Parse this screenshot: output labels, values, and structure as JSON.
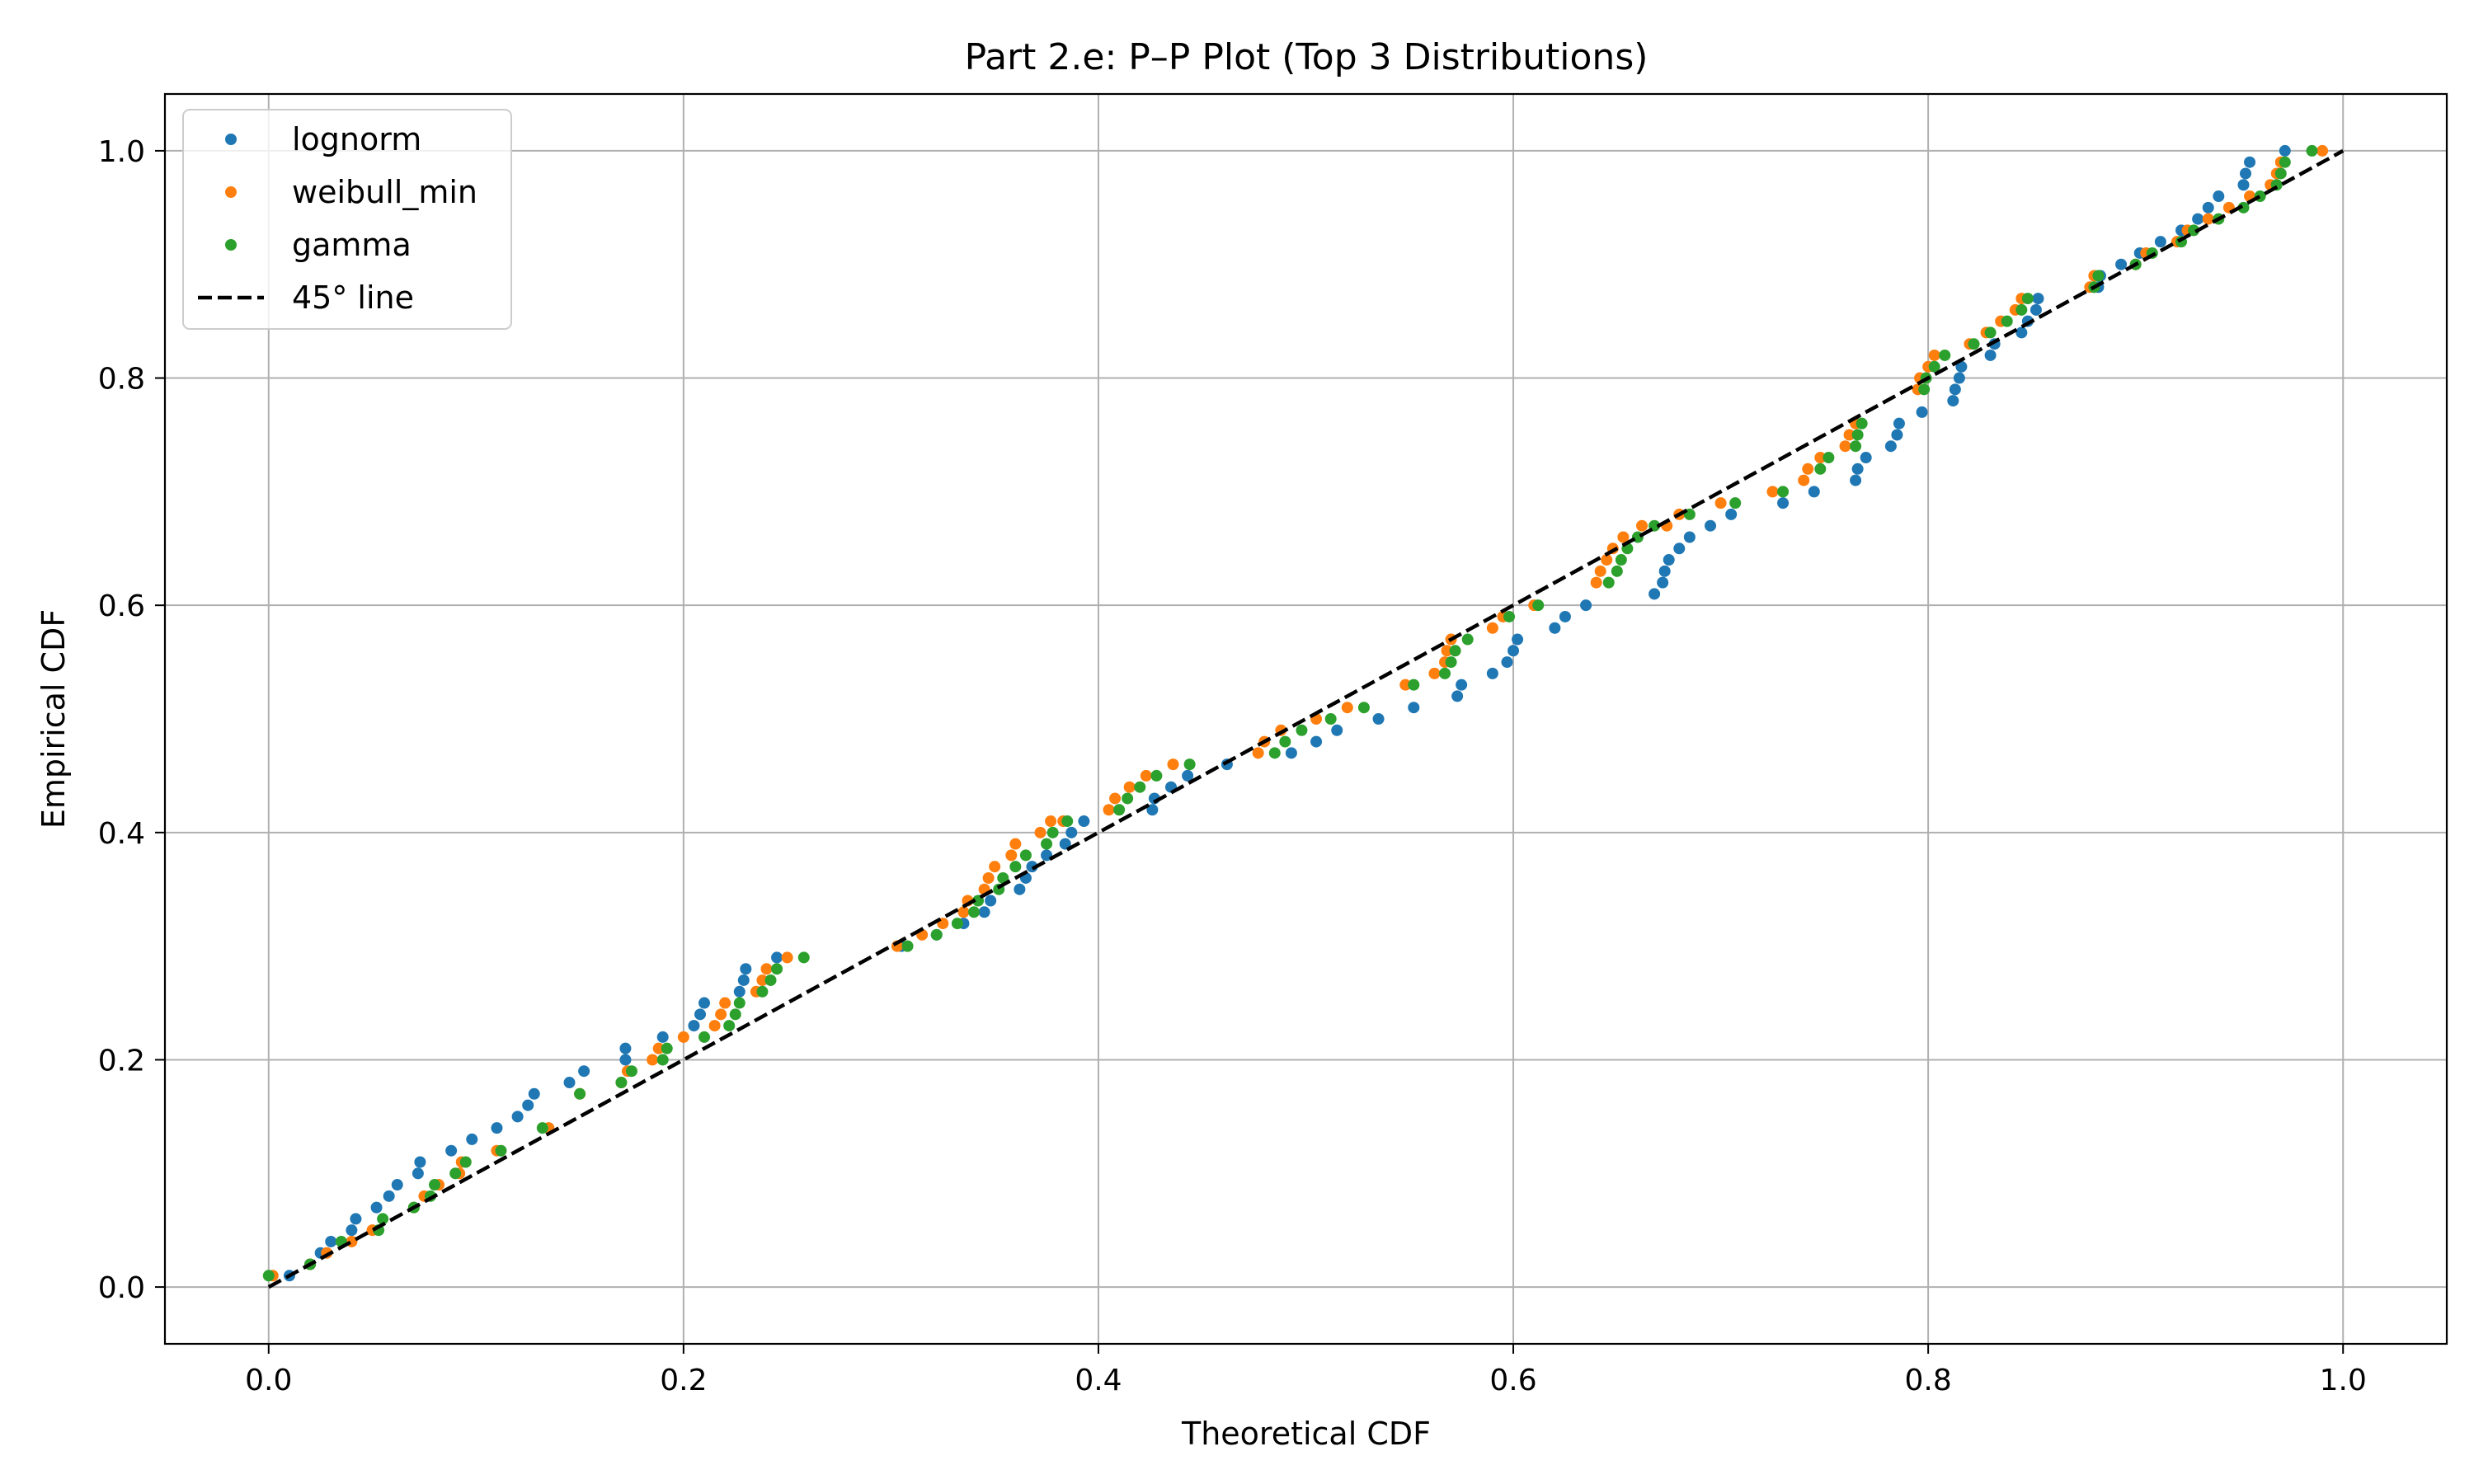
{
  "chart_data": {
    "type": "scatter",
    "title": "Part 2.e: P–P Plot (Top 3 Distributions)",
    "xlabel": "Theoretical CDF",
    "ylabel": "Empirical CDF",
    "xlim": [
      -0.05,
      1.05
    ],
    "ylim": [
      -0.05,
      1.05
    ],
    "x_ticks": [
      0.0,
      0.2,
      0.4,
      0.6,
      0.8,
      1.0
    ],
    "x_tick_labels": [
      "0.0",
      "0.2",
      "0.4",
      "0.6",
      "0.8",
      "1.0"
    ],
    "y_ticks": [
      0.0,
      0.2,
      0.4,
      0.6,
      0.8,
      1.0
    ],
    "y_tick_labels": [
      "0.0",
      "0.2",
      "0.4",
      "0.6",
      "0.8",
      "1.0"
    ],
    "grid": true,
    "legend_position": "top-left",
    "series": [
      {
        "name": "lognorm",
        "marker": "dot",
        "color": "#1f77b4",
        "points": [
          [
            0.01,
            0.01
          ],
          [
            0.02,
            0.02
          ],
          [
            0.025,
            0.03
          ],
          [
            0.03,
            0.04
          ],
          [
            0.04,
            0.05
          ],
          [
            0.042,
            0.06
          ],
          [
            0.052,
            0.07
          ],
          [
            0.058,
            0.08
          ],
          [
            0.062,
            0.09
          ],
          [
            0.072,
            0.1
          ],
          [
            0.073,
            0.11
          ],
          [
            0.088,
            0.12
          ],
          [
            0.098,
            0.13
          ],
          [
            0.11,
            0.14
          ],
          [
            0.12,
            0.15
          ],
          [
            0.125,
            0.16
          ],
          [
            0.128,
            0.17
          ],
          [
            0.145,
            0.18
          ],
          [
            0.152,
            0.19
          ],
          [
            0.172,
            0.2
          ],
          [
            0.172,
            0.21
          ],
          [
            0.19,
            0.22
          ],
          [
            0.205,
            0.23
          ],
          [
            0.208,
            0.24
          ],
          [
            0.21,
            0.25
          ],
          [
            0.227,
            0.26
          ],
          [
            0.229,
            0.27
          ],
          [
            0.23,
            0.28
          ],
          [
            0.245,
            0.29
          ],
          [
            0.305,
            0.3
          ],
          [
            0.322,
            0.31
          ],
          [
            0.335,
            0.32
          ],
          [
            0.345,
            0.33
          ],
          [
            0.348,
            0.34
          ],
          [
            0.362,
            0.35
          ],
          [
            0.365,
            0.36
          ],
          [
            0.368,
            0.37
          ],
          [
            0.375,
            0.38
          ],
          [
            0.384,
            0.39
          ],
          [
            0.387,
            0.4
          ],
          [
            0.393,
            0.41
          ],
          [
            0.426,
            0.42
          ],
          [
            0.427,
            0.43
          ],
          [
            0.435,
            0.44
          ],
          [
            0.443,
            0.45
          ],
          [
            0.462,
            0.46
          ],
          [
            0.493,
            0.47
          ],
          [
            0.505,
            0.48
          ],
          [
            0.515,
            0.49
          ],
          [
            0.535,
            0.5
          ],
          [
            0.552,
            0.51
          ],
          [
            0.573,
            0.52
          ],
          [
            0.575,
            0.53
          ],
          [
            0.59,
            0.54
          ],
          [
            0.597,
            0.55
          ],
          [
            0.6,
            0.56
          ],
          [
            0.602,
            0.57
          ],
          [
            0.62,
            0.58
          ],
          [
            0.625,
            0.59
          ],
          [
            0.635,
            0.6
          ],
          [
            0.668,
            0.61
          ],
          [
            0.672,
            0.62
          ],
          [
            0.673,
            0.63
          ],
          [
            0.675,
            0.64
          ],
          [
            0.68,
            0.65
          ],
          [
            0.685,
            0.66
          ],
          [
            0.695,
            0.67
          ],
          [
            0.705,
            0.68
          ],
          [
            0.73,
            0.69
          ],
          [
            0.745,
            0.7
          ],
          [
            0.765,
            0.71
          ],
          [
            0.766,
            0.72
          ],
          [
            0.77,
            0.73
          ],
          [
            0.782,
            0.74
          ],
          [
            0.785,
            0.75
          ],
          [
            0.786,
            0.76
          ],
          [
            0.797,
            0.77
          ],
          [
            0.812,
            0.78
          ],
          [
            0.813,
            0.79
          ],
          [
            0.815,
            0.8
          ],
          [
            0.816,
            0.81
          ],
          [
            0.83,
            0.82
          ],
          [
            0.832,
            0.83
          ],
          [
            0.845,
            0.84
          ],
          [
            0.848,
            0.85
          ],
          [
            0.852,
            0.86
          ],
          [
            0.853,
            0.87
          ],
          [
            0.882,
            0.88
          ],
          [
            0.883,
            0.89
          ],
          [
            0.893,
            0.9
          ],
          [
            0.902,
            0.91
          ],
          [
            0.912,
            0.92
          ],
          [
            0.922,
            0.93
          ],
          [
            0.93,
            0.94
          ],
          [
            0.935,
            0.95
          ],
          [
            0.94,
            0.96
          ],
          [
            0.952,
            0.97
          ],
          [
            0.953,
            0.98
          ],
          [
            0.955,
            0.99
          ],
          [
            0.972,
            1.0
          ]
        ]
      },
      {
        "name": "weibull_min",
        "marker": "dot",
        "color": "#ff7f0e",
        "points": [
          [
            0.002,
            0.01
          ],
          [
            0.02,
            0.02
          ],
          [
            0.028,
            0.03
          ],
          [
            0.04,
            0.04
          ],
          [
            0.05,
            0.05
          ],
          [
            0.07,
            0.07
          ],
          [
            0.075,
            0.08
          ],
          [
            0.082,
            0.09
          ],
          [
            0.092,
            0.1
          ],
          [
            0.093,
            0.11
          ],
          [
            0.11,
            0.12
          ],
          [
            0.135,
            0.14
          ],
          [
            0.15,
            0.17
          ],
          [
            0.17,
            0.18
          ],
          [
            0.173,
            0.19
          ],
          [
            0.185,
            0.2
          ],
          [
            0.188,
            0.21
          ],
          [
            0.2,
            0.22
          ],
          [
            0.215,
            0.23
          ],
          [
            0.218,
            0.24
          ],
          [
            0.22,
            0.25
          ],
          [
            0.235,
            0.26
          ],
          [
            0.238,
            0.27
          ],
          [
            0.24,
            0.28
          ],
          [
            0.25,
            0.29
          ],
          [
            0.303,
            0.3
          ],
          [
            0.315,
            0.31
          ],
          [
            0.325,
            0.32
          ],
          [
            0.335,
            0.33
          ],
          [
            0.337,
            0.34
          ],
          [
            0.345,
            0.35
          ],
          [
            0.347,
            0.36
          ],
          [
            0.35,
            0.37
          ],
          [
            0.358,
            0.38
          ],
          [
            0.36,
            0.39
          ],
          [
            0.372,
            0.4
          ],
          [
            0.377,
            0.41
          ],
          [
            0.383,
            0.41
          ],
          [
            0.405,
            0.42
          ],
          [
            0.408,
            0.43
          ],
          [
            0.415,
            0.44
          ],
          [
            0.423,
            0.45
          ],
          [
            0.436,
            0.46
          ],
          [
            0.477,
            0.47
          ],
          [
            0.48,
            0.48
          ],
          [
            0.488,
            0.49
          ],
          [
            0.505,
            0.5
          ],
          [
            0.52,
            0.51
          ],
          [
            0.548,
            0.53
          ],
          [
            0.562,
            0.54
          ],
          [
            0.567,
            0.55
          ],
          [
            0.568,
            0.56
          ],
          [
            0.57,
            0.57
          ],
          [
            0.59,
            0.58
          ],
          [
            0.595,
            0.59
          ],
          [
            0.61,
            0.6
          ],
          [
            0.64,
            0.62
          ],
          [
            0.642,
            0.63
          ],
          [
            0.645,
            0.64
          ],
          [
            0.648,
            0.65
          ],
          [
            0.653,
            0.66
          ],
          [
            0.662,
            0.67
          ],
          [
            0.674,
            0.67
          ],
          [
            0.68,
            0.68
          ],
          [
            0.7,
            0.69
          ],
          [
            0.725,
            0.7
          ],
          [
            0.74,
            0.71
          ],
          [
            0.742,
            0.72
          ],
          [
            0.748,
            0.73
          ],
          [
            0.76,
            0.74
          ],
          [
            0.762,
            0.75
          ],
          [
            0.765,
            0.76
          ],
          [
            0.795,
            0.79
          ],
          [
            0.796,
            0.8
          ],
          [
            0.8,
            0.81
          ],
          [
            0.803,
            0.82
          ],
          [
            0.82,
            0.83
          ],
          [
            0.828,
            0.84
          ],
          [
            0.835,
            0.85
          ],
          [
            0.842,
            0.86
          ],
          [
            0.845,
            0.87
          ],
          [
            0.878,
            0.88
          ],
          [
            0.88,
            0.89
          ],
          [
            0.9,
            0.9
          ],
          [
            0.905,
            0.91
          ],
          [
            0.92,
            0.92
          ],
          [
            0.925,
            0.93
          ],
          [
            0.935,
            0.94
          ],
          [
            0.945,
            0.95
          ],
          [
            0.955,
            0.96
          ],
          [
            0.965,
            0.97
          ],
          [
            0.968,
            0.98
          ],
          [
            0.97,
            0.99
          ],
          [
            0.99,
            1.0
          ]
        ]
      },
      {
        "name": "gamma",
        "marker": "dot",
        "color": "#2ca02c",
        "points": [
          [
            0.0,
            0.01
          ],
          [
            0.02,
            0.02
          ],
          [
            0.035,
            0.04
          ],
          [
            0.053,
            0.05
          ],
          [
            0.055,
            0.06
          ],
          [
            0.07,
            0.07
          ],
          [
            0.078,
            0.08
          ],
          [
            0.08,
            0.09
          ],
          [
            0.09,
            0.1
          ],
          [
            0.095,
            0.11
          ],
          [
            0.112,
            0.12
          ],
          [
            0.132,
            0.14
          ],
          [
            0.15,
            0.17
          ],
          [
            0.17,
            0.18
          ],
          [
            0.175,
            0.19
          ],
          [
            0.19,
            0.2
          ],
          [
            0.192,
            0.21
          ],
          [
            0.21,
            0.22
          ],
          [
            0.222,
            0.23
          ],
          [
            0.225,
            0.24
          ],
          [
            0.227,
            0.25
          ],
          [
            0.238,
            0.26
          ],
          [
            0.242,
            0.27
          ],
          [
            0.245,
            0.28
          ],
          [
            0.258,
            0.29
          ],
          [
            0.308,
            0.3
          ],
          [
            0.322,
            0.31
          ],
          [
            0.332,
            0.32
          ],
          [
            0.34,
            0.33
          ],
          [
            0.342,
            0.34
          ],
          [
            0.352,
            0.35
          ],
          [
            0.354,
            0.36
          ],
          [
            0.36,
            0.37
          ],
          [
            0.365,
            0.38
          ],
          [
            0.375,
            0.39
          ],
          [
            0.378,
            0.4
          ],
          [
            0.385,
            0.41
          ],
          [
            0.41,
            0.42
          ],
          [
            0.414,
            0.43
          ],
          [
            0.42,
            0.44
          ],
          [
            0.428,
            0.45
          ],
          [
            0.444,
            0.46
          ],
          [
            0.485,
            0.47
          ],
          [
            0.49,
            0.48
          ],
          [
            0.498,
            0.49
          ],
          [
            0.512,
            0.5
          ],
          [
            0.528,
            0.51
          ],
          [
            0.552,
            0.53
          ],
          [
            0.567,
            0.54
          ],
          [
            0.57,
            0.55
          ],
          [
            0.572,
            0.56
          ],
          [
            0.578,
            0.57
          ],
          [
            0.598,
            0.59
          ],
          [
            0.612,
            0.6
          ],
          [
            0.646,
            0.62
          ],
          [
            0.65,
            0.63
          ],
          [
            0.652,
            0.64
          ],
          [
            0.655,
            0.65
          ],
          [
            0.66,
            0.66
          ],
          [
            0.668,
            0.67
          ],
          [
            0.685,
            0.68
          ],
          [
            0.707,
            0.69
          ],
          [
            0.73,
            0.7
          ],
          [
            0.748,
            0.72
          ],
          [
            0.752,
            0.73
          ],
          [
            0.765,
            0.74
          ],
          [
            0.766,
            0.75
          ],
          [
            0.768,
            0.76
          ],
          [
            0.798,
            0.79
          ],
          [
            0.799,
            0.8
          ],
          [
            0.803,
            0.81
          ],
          [
            0.808,
            0.82
          ],
          [
            0.822,
            0.83
          ],
          [
            0.83,
            0.84
          ],
          [
            0.838,
            0.85
          ],
          [
            0.845,
            0.86
          ],
          [
            0.848,
            0.87
          ],
          [
            0.88,
            0.88
          ],
          [
            0.882,
            0.89
          ],
          [
            0.9,
            0.9
          ],
          [
            0.908,
            0.91
          ],
          [
            0.922,
            0.92
          ],
          [
            0.928,
            0.93
          ],
          [
            0.94,
            0.94
          ],
          [
            0.952,
            0.95
          ],
          [
            0.96,
            0.96
          ],
          [
            0.968,
            0.97
          ],
          [
            0.97,
            0.98
          ],
          [
            0.972,
            0.99
          ],
          [
            0.985,
            1.0
          ]
        ]
      },
      {
        "name": "45° line",
        "marker": "dashed-line",
        "color": "#000000",
        "points": [
          [
            0.0,
            0.0
          ],
          [
            1.0,
            1.0
          ]
        ]
      }
    ]
  }
}
